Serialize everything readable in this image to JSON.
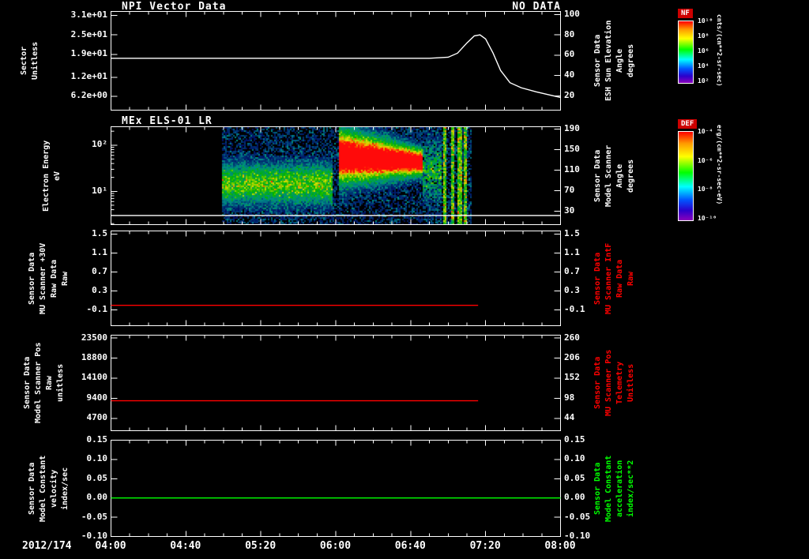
{
  "time_axis": {
    "date": "2012/174",
    "labels": [
      "04:00",
      "04:40",
      "05:20",
      "06:00",
      "06:40",
      "07:20",
      "08:00"
    ],
    "range_min": [
      0,
      240
    ],
    "major_every_min": 40,
    "minor_every_min": 10
  },
  "chart_data": [
    {
      "type": "line",
      "panel": "npi-vector-data",
      "title": "NPI Vector Data",
      "annotation": "NO DATA",
      "left_axis": {
        "label_lines": [
          "Sector",
          "Unitless"
        ],
        "tick_labels": [
          "3.1e+01",
          "2.5e+01",
          "1.9e+01",
          "1.2e+01",
          "6.2e+00"
        ],
        "tick_values": [
          31,
          25,
          19,
          12,
          6.2
        ],
        "ylim": [
          1.9,
          32.2
        ]
      },
      "right_axis": {
        "label_lines": [
          "Sensor Data",
          "ESH Sun Elevation",
          "Angle",
          "degrees"
        ],
        "tick_labels": [
          "100",
          "80",
          "60",
          "40",
          "20"
        ],
        "tick_values": [
          100,
          80,
          60,
          40,
          20
        ],
        "ylim": [
          6,
          103
        ]
      },
      "series": [
        {
          "name": "esh-sun-elevation-angle",
          "color": "#ffffff",
          "axis": "right",
          "x_minutes": [
            0,
            120,
            170,
            180,
            185,
            190,
            194,
            197,
            200,
            204,
            208,
            213,
            219,
            227,
            234,
            240
          ],
          "values": [
            57,
            57,
            57,
            58,
            62,
            72,
            79,
            80,
            76,
            62,
            45,
            33,
            28,
            24,
            21,
            18.5
          ]
        }
      ]
    },
    {
      "type": "heatmap",
      "panel": "els-spectrogram",
      "title": "MEx ELS-01 LR",
      "left_axis": {
        "label_lines": [
          "Electron Energy",
          "eV"
        ],
        "tick_labels": [
          "10²",
          "10¹"
        ],
        "tick_values": [
          100,
          10
        ],
        "ylim": [
          0.2788,
          2.3979
        ],
        "log": true
      },
      "right_axis": {
        "label_lines": [
          "Sensor Data",
          "Model Scanner",
          "Angle",
          "degrees"
        ],
        "tick_labels": [
          "190",
          "150",
          "110",
          "70",
          "30"
        ],
        "tick_values": [
          190,
          150,
          110,
          70,
          30
        ],
        "ylim": [
          4.1,
          194.6
        ]
      },
      "spectrogram": {
        "time_start_min": 59,
        "time_end_min": 192,
        "energy_range_ev": [
          1.9,
          250
        ],
        "background_band": {
          "t_end_min": 118,
          "energy_center_ev": 15,
          "sigma_decades": 0.27
        },
        "burst": {
          "t_start_min": 121,
          "t_end_min": 166,
          "energy_center_ev": 60,
          "sigma_frac_start": 0.17,
          "sigma_frac_end": 0.08
        },
        "post_burst_fade_min": 10,
        "streak_times_min": [
          178,
          182,
          186,
          189
        ]
      },
      "series": [
        {
          "name": "low-energy-cutoff-line",
          "color": "#ffffff",
          "axis": "left",
          "x_minutes": [
            0,
            240
          ],
          "values": [
            3,
            3
          ]
        }
      ],
      "colorbars": [
        {
          "name": "NF",
          "units": "cnts/(cm**2-sr-sec)",
          "tick_labels": [
            "10¹⁰",
            "10⁸",
            "10⁶",
            "10⁴",
            "10²"
          ]
        },
        {
          "name": "DEF",
          "units": "erg/(cm**2-sr-sec-eV)",
          "tick_labels": [
            "10⁻⁴",
            "10⁻⁶",
            "10⁻⁸",
            "10⁻¹⁰"
          ]
        }
      ]
    },
    {
      "type": "line",
      "panel": "mu-scanner-30v",
      "left_axis": {
        "label_lines": [
          "Sensor Data",
          "MU Scanner +30V",
          "Raw Data",
          "Raw"
        ],
        "tick_labels": [
          "1.5",
          "1.1",
          "0.7",
          "0.3",
          "-0.1"
        ],
        "tick_values": [
          1.5,
          1.1,
          0.7,
          0.3,
          -0.1
        ],
        "ylim": [
          -0.43,
          1.57
        ]
      },
      "right_axis": {
        "label_lines": [
          "Sensor Data",
          "MU Scanner IntF",
          "Raw Data",
          "Raw"
        ],
        "label_color": "#ff0000",
        "tick_labels": [
          "1.5",
          "1.1",
          "0.7",
          "0.3",
          "-0.1"
        ],
        "tick_values": [
          1.5,
          1.1,
          0.7,
          0.3,
          -0.1
        ],
        "ylim": [
          -0.43,
          1.57
        ]
      },
      "series": [
        {
          "name": "mu-scanner-30v-raw",
          "color": "#ff0000",
          "axis": "left",
          "x_minutes": [
            0,
            196
          ],
          "values": [
            0,
            0
          ]
        }
      ]
    },
    {
      "type": "line",
      "panel": "model-scanner-pos",
      "left_axis": {
        "label_lines": [
          "Sensor Data",
          "Model Scanner Pos",
          "Raw",
          "unitless"
        ],
        "tick_labels": [
          "23500",
          "18800",
          "14100",
          "9400",
          "4700"
        ],
        "tick_values": [
          23500,
          18800,
          14100,
          9400,
          4700
        ],
        "ylim": [
          1790,
          24170
        ]
      },
      "right_axis": {
        "label_lines": [
          "Sensor Data",
          "MU Scanner Pos",
          "Telemetry",
          "Unitless"
        ],
        "label_color": "#ff0000",
        "tick_labels": [
          "260",
          "206",
          "152",
          "98",
          "44"
        ],
        "tick_values": [
          260,
          206,
          152,
          98,
          44
        ],
        "ylim": [
          10.7,
          267.7
        ]
      },
      "series": [
        {
          "name": "model-scanner-pos-raw",
          "color": "#ff0000",
          "axis": "left",
          "x_minutes": [
            0,
            196
          ],
          "values": [
            8800,
            8800
          ]
        }
      ]
    },
    {
      "type": "line",
      "panel": "model-constant",
      "left_axis": {
        "label_lines": [
          "Sensor Data",
          "Model Constant",
          "velocity",
          "index/sec"
        ],
        "tick_labels": [
          "0.15",
          "0.10",
          "0.05",
          "0.00",
          "-0.05",
          "-0.10"
        ],
        "tick_values": [
          0.15,
          0.1,
          0.05,
          0.0,
          -0.05,
          -0.1
        ],
        "ylim": [
          -0.1,
          0.15
        ]
      },
      "right_axis": {
        "label_lines": [
          "Sensor Data",
          "Model Constant",
          "acceleration",
          "index/sec**2"
        ],
        "label_color": "#00ff00",
        "tick_labels": [
          "0.15",
          "0.10",
          "0.05",
          "0.00",
          "-0.05",
          "-0.10"
        ],
        "tick_values": [
          0.15,
          0.1,
          0.05,
          0.0,
          -0.05,
          -0.1
        ],
        "ylim": [
          -0.1,
          0.15
        ]
      },
      "series": [
        {
          "name": "model-constant-velocity",
          "color": "#00ff00",
          "axis": "left",
          "x_minutes": [
            0,
            240
          ],
          "values": [
            0,
            0
          ]
        }
      ]
    }
  ]
}
